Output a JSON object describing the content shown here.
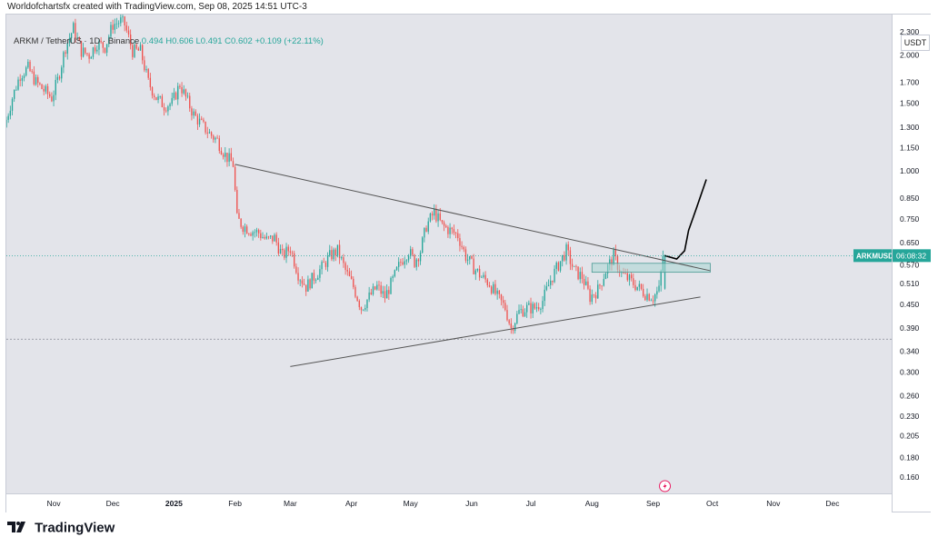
{
  "header": {
    "credit": "Worldofchartsfx created with TradingView.com, Sep 08, 2025 14:51 UTC-3"
  },
  "legend": {
    "symbol": "ARKM / TetherUS · 1D · Binance",
    "ohlc_text": "0.494  H0.606  L0.491  C0.602  +0.109 (+22.11%)"
  },
  "currency_button": "USDT",
  "price_tag": {
    "symbol": "ARKMUSDT",
    "countdown": "06:08:32"
  },
  "footer": {
    "brand": "TradingView"
  },
  "colors": {
    "up": "#26a69a",
    "down": "#ef5350",
    "trendline": "#555555",
    "zone": "#a9d6d2",
    "projection": "#000000",
    "current_line": "#26a69a"
  },
  "chart_data": {
    "type": "candlestick",
    "title": "ARKM / TetherUS · 1D · Binance",
    "scale": "log",
    "y_ticks": [
      "2.300",
      "2.000",
      "1.700",
      "1.500",
      "1.300",
      "1.150",
      "1.000",
      "0.850",
      "0.750",
      "0.650",
      "0.570",
      "0.510",
      "0.450",
      "0.390",
      "0.340",
      "0.300",
      "0.260",
      "0.230",
      "0.205",
      "0.180",
      "0.160"
    ],
    "x_ticks": [
      "Nov",
      "Dec",
      "2025",
      "Feb",
      "Mar",
      "Apr",
      "May",
      "Jun",
      "Jul",
      "Aug",
      "Sep",
      "Oct",
      "Nov",
      "Dec"
    ],
    "x_range": [
      "2024-10-08",
      "2025-12-31"
    ],
    "y_range": [
      0.145,
      2.55
    ],
    "closes": [
      [
        "2024-10-08",
        1.3
      ],
      [
        "2024-10-12",
        1.55
      ],
      [
        "2024-10-16",
        1.78
      ],
      [
        "2024-10-20",
        1.85
      ],
      [
        "2024-10-24",
        1.7
      ],
      [
        "2024-10-28",
        1.62
      ],
      [
        "2024-11-01",
        1.55
      ],
      [
        "2024-11-04",
        1.72
      ],
      [
        "2024-11-08",
        2.1
      ],
      [
        "2024-11-12",
        2.35
      ],
      [
        "2024-11-16",
        2.05
      ],
      [
        "2024-11-20",
        2.0
      ],
      [
        "2024-11-24",
        2.15
      ],
      [
        "2024-11-28",
        2.1
      ],
      [
        "2024-12-02",
        2.4
      ],
      [
        "2024-12-06",
        2.45
      ],
      [
        "2024-12-08",
        2.4
      ],
      [
        "2024-12-12",
        2.05
      ],
      [
        "2024-12-16",
        2.05
      ],
      [
        "2024-12-20",
        1.7
      ],
      [
        "2024-12-24",
        1.55
      ],
      [
        "2024-12-28",
        1.48
      ],
      [
        "2025-01-01",
        1.5
      ],
      [
        "2025-01-05",
        1.68
      ],
      [
        "2025-01-08",
        1.55
      ],
      [
        "2025-01-12",
        1.4
      ],
      [
        "2025-01-16",
        1.32
      ],
      [
        "2025-01-20",
        1.25
      ],
      [
        "2025-01-24",
        1.2
      ],
      [
        "2025-01-28",
        1.1
      ],
      [
        "2025-02-01",
        1.04
      ],
      [
        "2025-02-03",
        0.75
      ],
      [
        "2025-02-06",
        0.72
      ],
      [
        "2025-02-10",
        0.7
      ],
      [
        "2025-02-14",
        0.69
      ],
      [
        "2025-02-18",
        0.66
      ],
      [
        "2025-02-22",
        0.67
      ],
      [
        "2025-02-26",
        0.6
      ],
      [
        "2025-03-02",
        0.63
      ],
      [
        "2025-03-06",
        0.54
      ],
      [
        "2025-03-10",
        0.5
      ],
      [
        "2025-03-14",
        0.53
      ],
      [
        "2025-03-18",
        0.56
      ],
      [
        "2025-03-22",
        0.6
      ],
      [
        "2025-03-26",
        0.62
      ],
      [
        "2025-03-30",
        0.55
      ],
      [
        "2025-04-03",
        0.5
      ],
      [
        "2025-04-07",
        0.44
      ],
      [
        "2025-04-11",
        0.47
      ],
      [
        "2025-04-15",
        0.5
      ],
      [
        "2025-04-19",
        0.47
      ],
      [
        "2025-04-23",
        0.52
      ],
      [
        "2025-04-27",
        0.58
      ],
      [
        "2025-05-01",
        0.62
      ],
      [
        "2025-05-04",
        0.58
      ],
      [
        "2025-05-07",
        0.62
      ],
      [
        "2025-05-10",
        0.72
      ],
      [
        "2025-05-14",
        0.78
      ],
      [
        "2025-05-18",
        0.72
      ],
      [
        "2025-05-22",
        0.7
      ],
      [
        "2025-05-26",
        0.68
      ],
      [
        "2025-05-30",
        0.6
      ],
      [
        "2025-06-03",
        0.56
      ],
      [
        "2025-06-07",
        0.53
      ],
      [
        "2025-06-11",
        0.51
      ],
      [
        "2025-06-15",
        0.47
      ],
      [
        "2025-06-19",
        0.44
      ],
      [
        "2025-06-22",
        0.39
      ],
      [
        "2025-06-26",
        0.43
      ],
      [
        "2025-06-30",
        0.44
      ],
      [
        "2025-07-04",
        0.44
      ],
      [
        "2025-07-08",
        0.46
      ],
      [
        "2025-07-12",
        0.52
      ],
      [
        "2025-07-16",
        0.57
      ],
      [
        "2025-07-20",
        0.62
      ],
      [
        "2025-07-24",
        0.55
      ],
      [
        "2025-07-28",
        0.53
      ],
      [
        "2025-08-01",
        0.47
      ],
      [
        "2025-08-05",
        0.49
      ],
      [
        "2025-08-09",
        0.55
      ],
      [
        "2025-08-13",
        0.6
      ],
      [
        "2025-08-17",
        0.54
      ],
      [
        "2025-08-21",
        0.52
      ],
      [
        "2025-08-25",
        0.5
      ],
      [
        "2025-08-29",
        0.48
      ],
      [
        "2025-09-02",
        0.47
      ],
      [
        "2025-09-05",
        0.49
      ],
      [
        "2025-09-07",
        0.602
      ]
    ],
    "annotations": {
      "descending_trendline": [
        [
          "2025-02-01",
          1.04
        ],
        [
          "2025-09-30",
          0.55
        ]
      ],
      "ascending_trendline": [
        [
          "2025-03-01",
          0.31
        ],
        [
          "2025-09-25",
          0.47
        ]
      ],
      "resistance_zone": {
        "x_range": [
          "2025-08-01",
          "2025-09-30"
        ],
        "y_range": [
          0.545,
          0.575
        ]
      },
      "projection_path": [
        [
          "2025-09-07",
          0.602
        ],
        [
          "2025-09-13",
          0.59
        ],
        [
          "2025-09-17",
          0.62
        ],
        [
          "2025-09-19",
          0.7
        ],
        [
          "2025-09-23",
          0.8
        ],
        [
          "2025-09-28",
          0.95
        ]
      ],
      "reference_price": 0.365
    }
  }
}
